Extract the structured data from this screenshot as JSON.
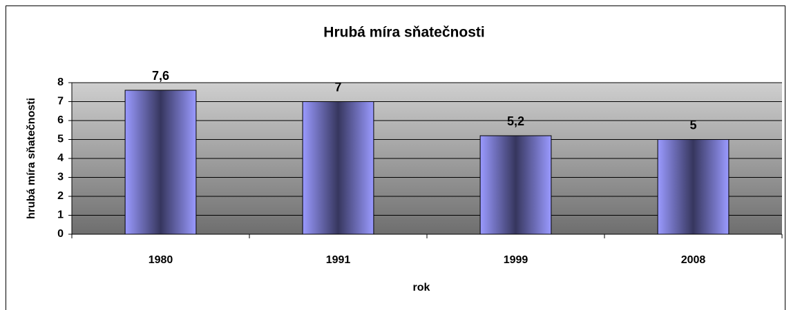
{
  "chart_data": {
    "type": "bar",
    "title": "Hrubá míra sňatečnosti",
    "x_label": "rok",
    "y_label": "hrubá míra sňatečnosti",
    "categories": [
      "1980",
      "1991",
      "1999",
      "2008"
    ],
    "values": [
      7.6,
      7,
      5.2,
      5
    ],
    "value_labels": [
      "7,6",
      "7",
      "5,2",
      "5"
    ],
    "color": "#9999ff",
    "ylim": [
      0,
      8
    ],
    "yticks": [
      0,
      1,
      2,
      3,
      4,
      5,
      6,
      7,
      8
    ],
    "grid": true
  }
}
